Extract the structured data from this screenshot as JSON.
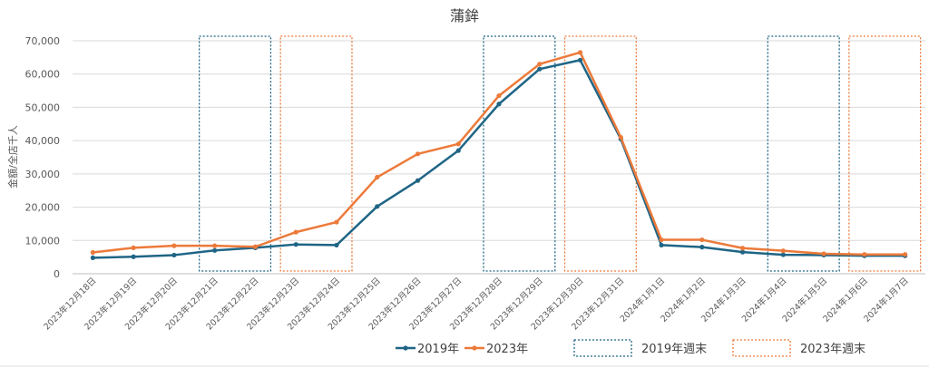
{
  "colors": {
    "series_2019": "#1f6585",
    "series_2023": "#ec7a3a",
    "grid": "#d9d9d9",
    "text": "#595959"
  },
  "chart_data": {
    "type": "line",
    "title": "蒲鉾",
    "ylabel": "金額/全店千人",
    "xlabel": "",
    "ylim": [
      0,
      70000
    ],
    "yticks": [
      0,
      10000,
      20000,
      30000,
      40000,
      50000,
      60000,
      70000
    ],
    "ytick_labels": [
      "0",
      "10,000",
      "20,000",
      "30,000",
      "40,000",
      "50,000",
      "60,000",
      "70,000"
    ],
    "grid": true,
    "legend_position": "bottom",
    "categories": [
      "2023年12月18日",
      "2023年12月19日",
      "2023年12月20日",
      "2023年12月21日",
      "2023年12月22日",
      "2023年12月23日",
      "2023年12月24日",
      "2023年12月25日",
      "2023年12月26日",
      "2023年12月27日",
      "2023年12月28日",
      "2023年12月29日",
      "2023年12月30日",
      "2023年12月31日",
      "2024年1月1日",
      "2024年1月2日",
      "2024年1月3日",
      "2024年1月4日",
      "2024年1月5日",
      "2024年1月6日",
      "2024年1月7日"
    ],
    "series": [
      {
        "name": "2019年",
        "color": "#1f6585",
        "values": [
          4800,
          5100,
          5600,
          7000,
          7800,
          8800,
          8600,
          20200,
          28000,
          37000,
          51000,
          61500,
          64200,
          40500,
          8600,
          8000,
          6500,
          5700,
          5600,
          5400,
          5400
        ]
      },
      {
        "name": "2023年",
        "color": "#ec7a3a",
        "values": [
          6400,
          7800,
          8400,
          8400,
          8100,
          12500,
          15500,
          29000,
          36000,
          39000,
          53500,
          63000,
          66500,
          41000,
          10200,
          10200,
          7700,
          6900,
          6000,
          5800,
          5800
        ]
      }
    ],
    "weekend_highlights": [
      {
        "group": "2019年週末",
        "from": 3,
        "to": 4,
        "color": "#1f6585"
      },
      {
        "group": "2023年週末",
        "from": 5,
        "to": 6,
        "color": "#ec7a3a"
      },
      {
        "group": "2019年週末",
        "from": 10,
        "to": 11,
        "color": "#1f6585"
      },
      {
        "group": "2023年週末",
        "from": 12,
        "to": 13,
        "color": "#ec7a3a"
      },
      {
        "group": "2019年週末",
        "from": 17,
        "to": 18,
        "color": "#1f6585"
      },
      {
        "group": "2023年週末",
        "from": 19,
        "to": 20,
        "color": "#ec7a3a"
      }
    ],
    "legend": {
      "items": [
        {
          "label": "2019年",
          "kind": "line",
          "color": "#1f6585"
        },
        {
          "label": "2023年",
          "kind": "line",
          "color": "#ec7a3a"
        },
        {
          "label": "2019年週末",
          "kind": "box",
          "color": "#1f6585"
        },
        {
          "label": "2023年週末",
          "kind": "box",
          "color": "#ec7a3a"
        }
      ]
    }
  }
}
